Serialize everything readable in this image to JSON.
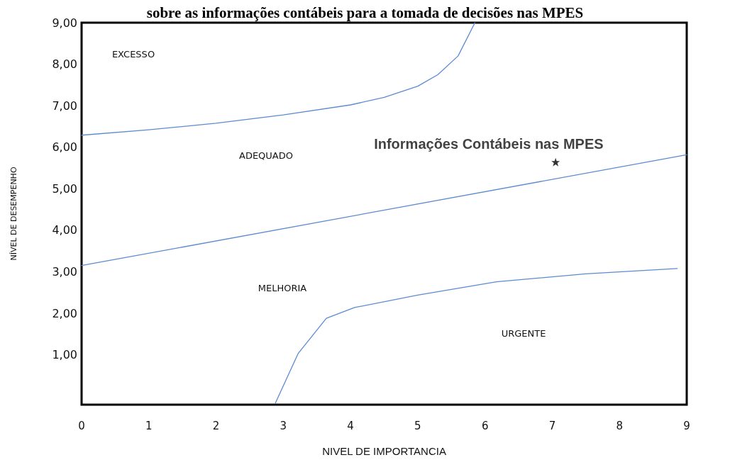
{
  "chart_data": {
    "type": "line",
    "title": "sobre as informações contábeis para a tomada de decisões nas MPES",
    "xlabel": "NIVEL DE IMPORTANCIA",
    "ylabel": "NÍVEL DE DESEMPENHO",
    "xlim": [
      0,
      9
    ],
    "ylim": [
      -0.2,
      9
    ],
    "xticks": [
      0,
      1,
      2,
      3,
      4,
      5,
      6,
      7,
      8,
      9
    ],
    "yticks": [
      {
        "value": 1,
        "label": "1,00"
      },
      {
        "value": 2,
        "label": "2,00"
      },
      {
        "value": 3,
        "label": "3,00"
      },
      {
        "value": 4,
        "label": "4,00"
      },
      {
        "value": 5,
        "label": "5,00"
      },
      {
        "value": 6,
        "label": "6,00"
      },
      {
        "value": 7,
        "label": "7,00"
      },
      {
        "value": 8,
        "label": "8,00"
      },
      {
        "value": 9,
        "label": "9,00"
      }
    ],
    "grid": false,
    "marker": "none",
    "line_style": "solid",
    "series": [
      {
        "color": "#5b8bd0",
        "x": [
          0,
          1,
          2,
          3,
          4,
          4.5,
          5,
          5.3,
          5.6,
          5.85
        ],
        "values": [
          6.29,
          6.42,
          6.58,
          6.78,
          7.02,
          7.2,
          7.47,
          7.75,
          8.2,
          9
        ]
      },
      {
        "color": "#5b8bd0",
        "x": [
          0,
          9
        ],
        "values": [
          3.15,
          5.82
        ]
      },
      {
        "color": "#5b8bd0",
        "x": [
          2.88,
          3.22,
          3.64,
          4.06,
          5,
          6.17,
          7.5,
          8.86
        ],
        "values": [
          -0.17,
          1.03,
          1.88,
          2.14,
          2.44,
          2.76,
          2.95,
          3.08
        ]
      },
      {
        "type": "scatter",
        "name": "Informações Contábeis nas MPES",
        "color": "#000000",
        "marker": "star",
        "x": [
          7.05
        ],
        "values": [
          5.64
        ]
      }
    ],
    "annotations": [
      "EXCESSO",
      "ADEQUADO",
      "MELHORIA",
      "URGENTE"
    ]
  }
}
